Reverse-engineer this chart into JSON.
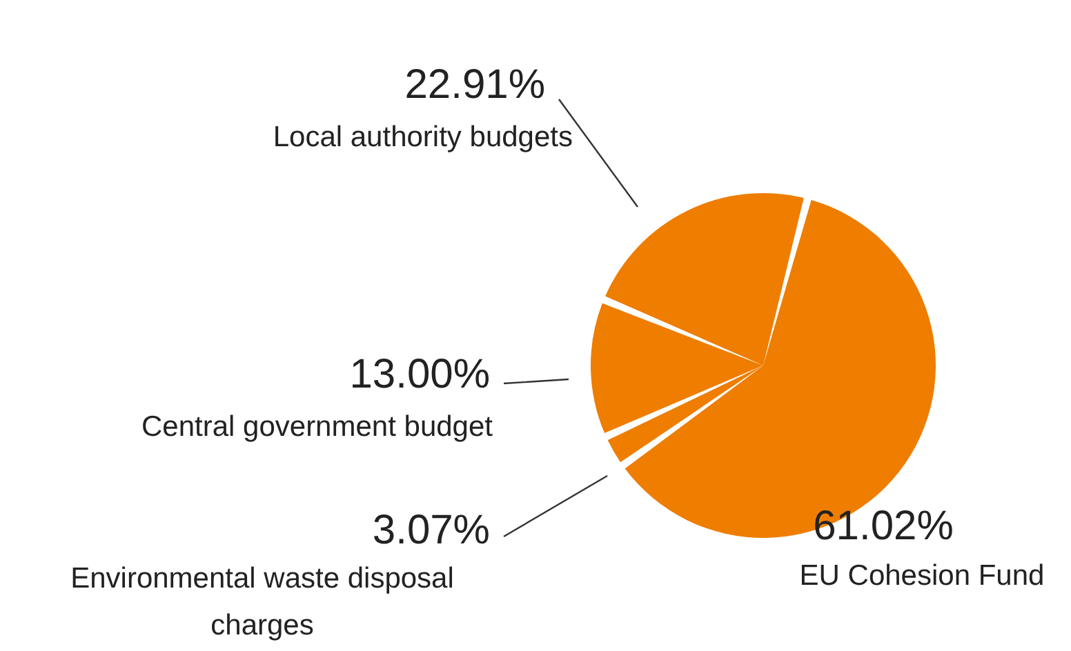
{
  "chart_data": {
    "type": "pie",
    "categories": [
      "EU Cohesion Fund",
      "Environmental waste disposal charges",
      "Central government budget",
      "Local authority budgets"
    ],
    "values": [
      61.02,
      3.07,
      13.0,
      22.91
    ],
    "value_labels": [
      "61.02%",
      "3.07%",
      "13.00%",
      "22.91%"
    ],
    "colors": [
      "#ee7d00",
      "#ee7d00",
      "#ee7d00",
      "#ee7d00"
    ]
  }
}
